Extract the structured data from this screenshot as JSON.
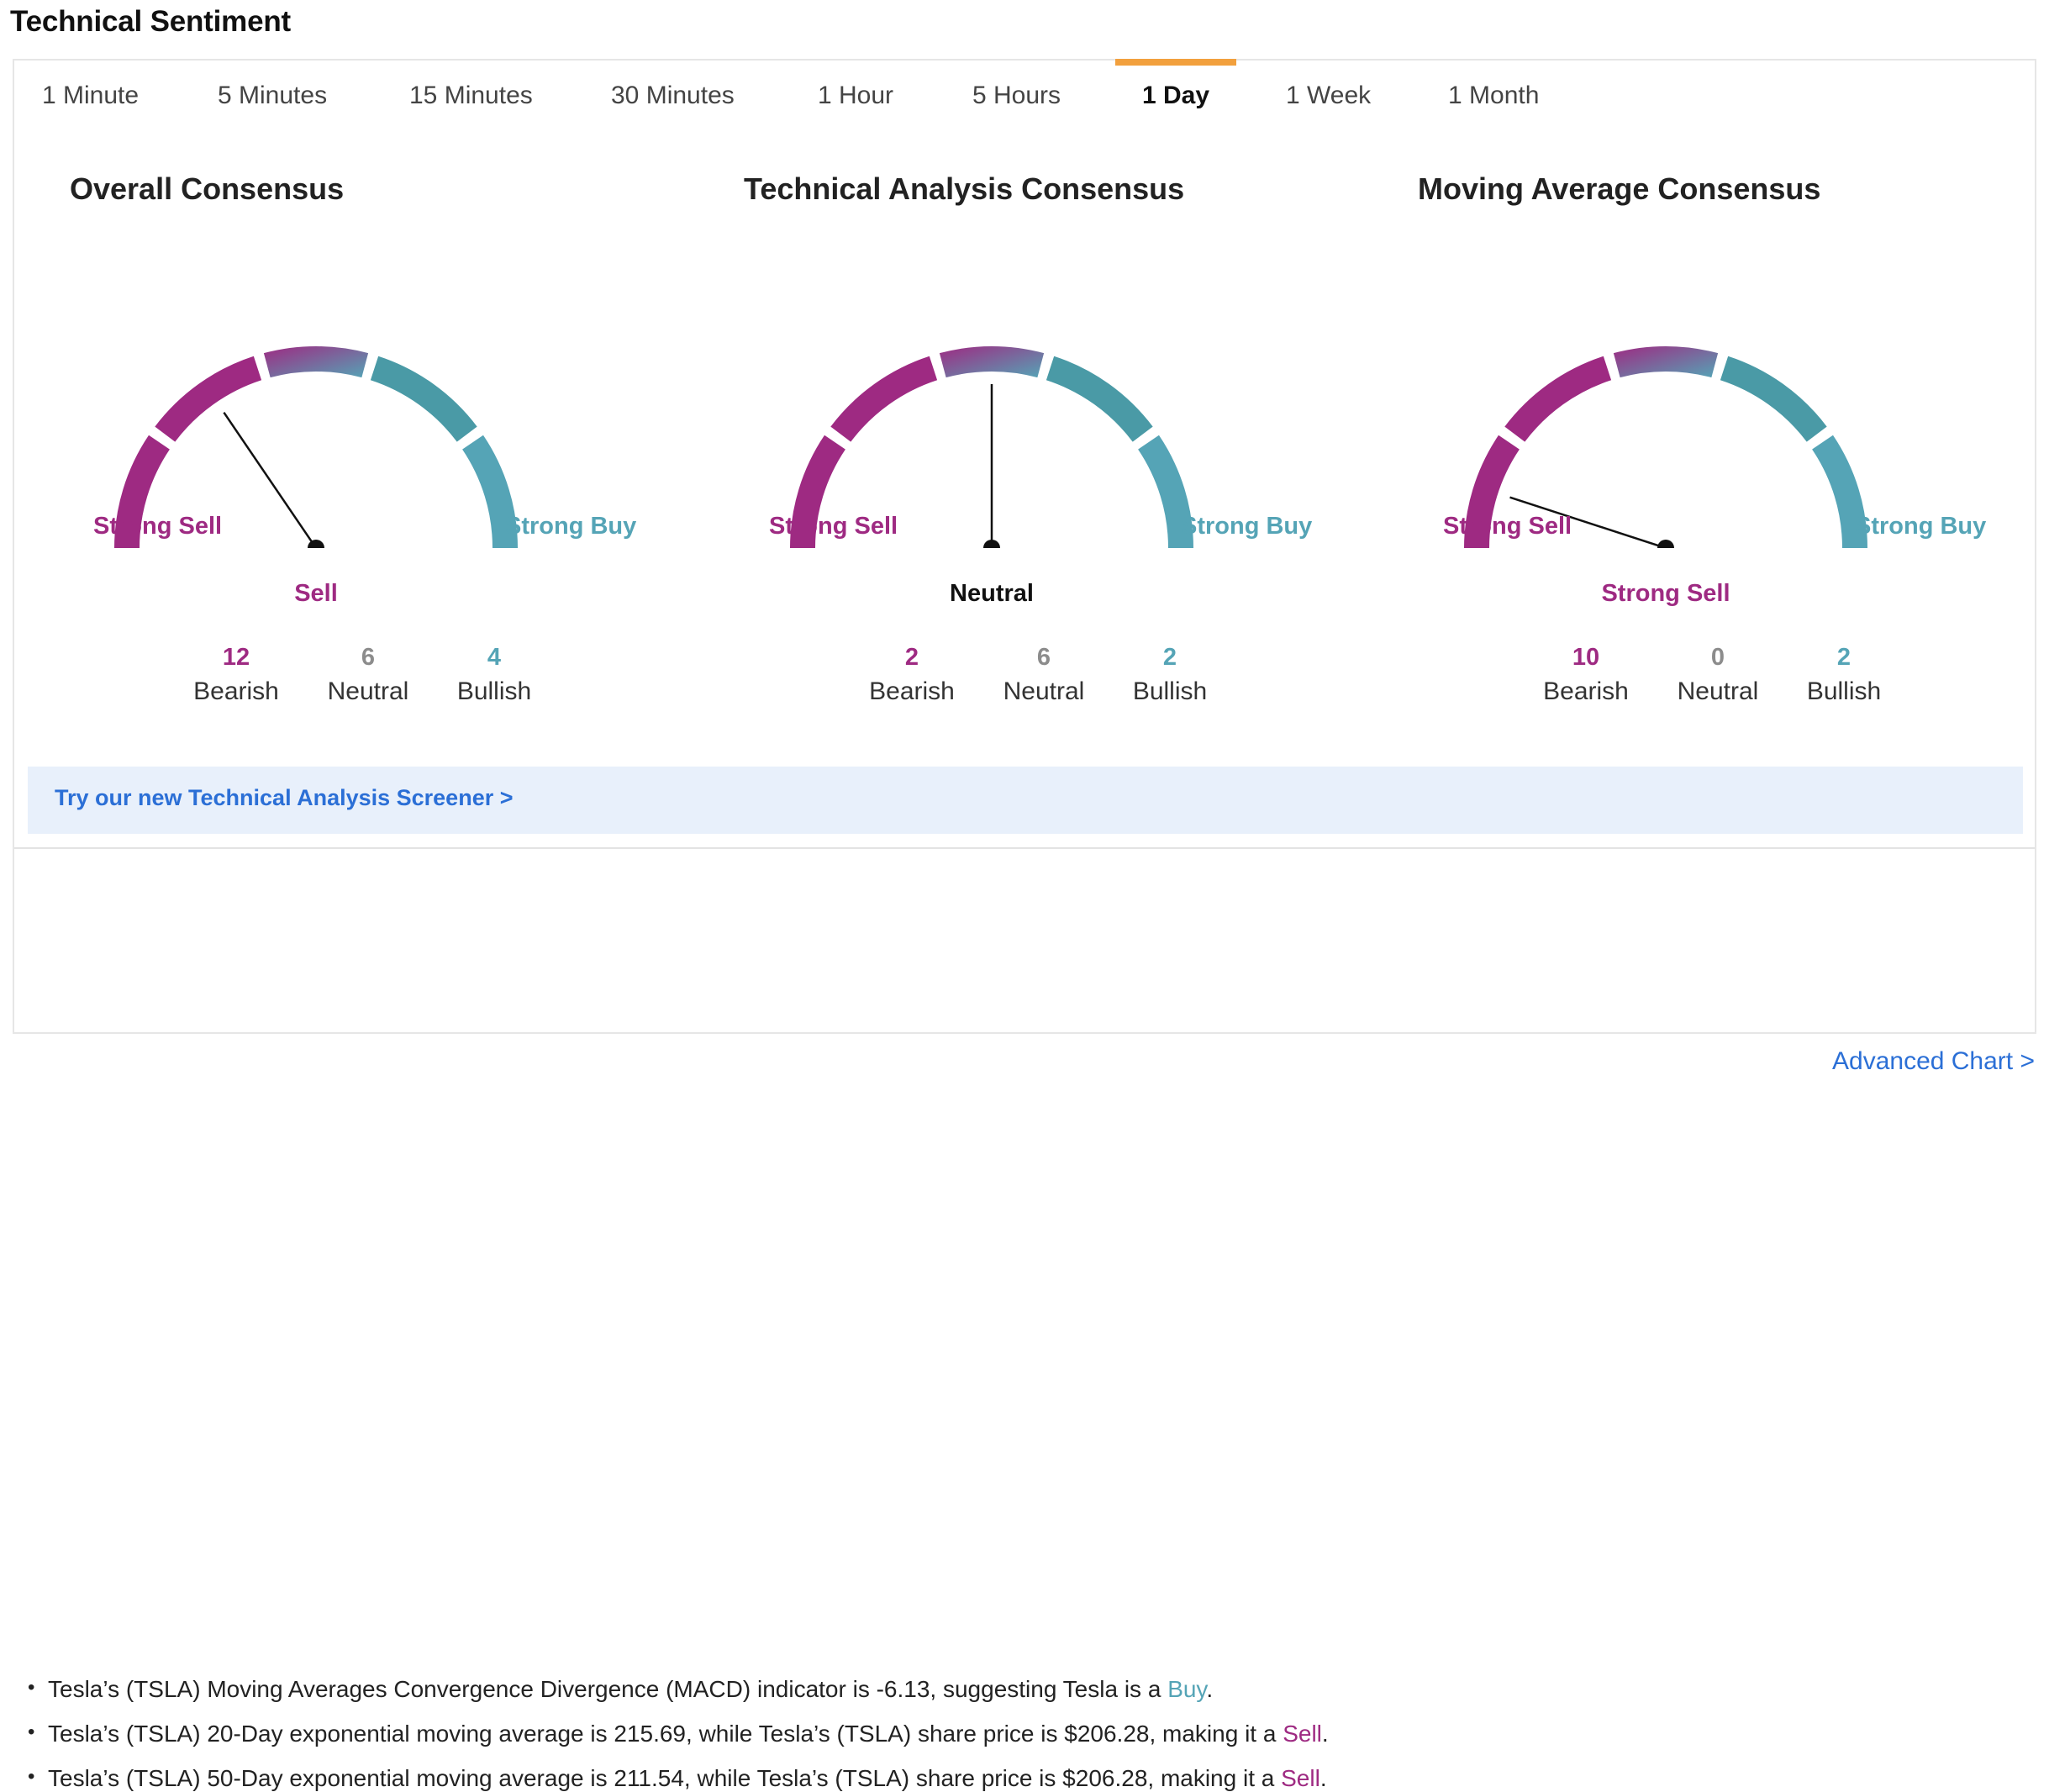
{
  "page": {
    "title": "Technical Sentiment"
  },
  "tabs": [
    {
      "label": "1 Minute",
      "active": false
    },
    {
      "label": "5 Minutes",
      "active": false
    },
    {
      "label": "15 Minutes",
      "active": false
    },
    {
      "label": "30 Minutes",
      "active": false
    },
    {
      "label": "1 Hour",
      "active": false
    },
    {
      "label": "5 Hours",
      "active": false
    },
    {
      "label": "1 Day",
      "active": true
    },
    {
      "label": "1 Week",
      "active": false
    },
    {
      "label": "1 Month",
      "active": false
    }
  ],
  "gauges": [
    {
      "title": "Overall Consensus",
      "left_label": "Strong Sell",
      "right_label": "Strong Buy",
      "verdict": "Sell",
      "verdict_color": "#9e2a82",
      "needle_level": 0.31,
      "counts": {
        "bearish": {
          "value": "12",
          "label": "Bearish"
        },
        "neutral": {
          "value": "6",
          "label": "Neutral"
        },
        "bullish": {
          "value": "4",
          "label": "Bullish"
        }
      }
    },
    {
      "title": "Technical Analysis Consensus",
      "left_label": "Strong Sell",
      "right_label": "Strong Buy",
      "verdict": "Neutral",
      "verdict_color": "#111111",
      "needle_level": 0.5,
      "counts": {
        "bearish": {
          "value": "2",
          "label": "Bearish"
        },
        "neutral": {
          "value": "6",
          "label": "Neutral"
        },
        "bullish": {
          "value": "2",
          "label": "Bullish"
        }
      }
    },
    {
      "title": "Moving Average Consensus",
      "left_label": "Strong Sell",
      "right_label": "Strong Buy",
      "verdict": "Strong Sell",
      "verdict_color": "#9e2a82",
      "needle_level": 0.1,
      "counts": {
        "bearish": {
          "value": "10",
          "label": "Bearish"
        },
        "neutral": {
          "value": "0",
          "label": "Neutral"
        },
        "bullish": {
          "value": "2",
          "label": "Bullish"
        }
      }
    }
  ],
  "screener": {
    "link_text": "Try our new Technical Analysis Screener >"
  },
  "bullets": [
    {
      "prefix": "Tesla’s (TSLA) Moving Averages Convergence Divergence (MACD) indicator is -6.13, suggesting Tesla is a ",
      "signal": "Buy",
      "suffix": "."
    },
    {
      "prefix": "Tesla’s (TSLA) 20-Day exponential moving average is 215.69, while Tesla’s (TSLA) share price is $206.28, making it a ",
      "signal": "Sell",
      "suffix": "."
    },
    {
      "prefix": "Tesla’s (TSLA) 50-Day exponential moving average is 211.54, while Tesla’s (TSLA) share price is $206.28, making it a ",
      "signal": "Sell",
      "suffix": "."
    }
  ],
  "footer": {
    "advanced_link": "Advanced Chart >"
  },
  "colors": {
    "sell": "#9e2a82",
    "buy": "#55a4b6",
    "neutral_count": "#8c8c8c",
    "active_tab_accent": "#f2a03d",
    "link": "#2b6fd6",
    "banner_bg": "#e8f0fb"
  }
}
